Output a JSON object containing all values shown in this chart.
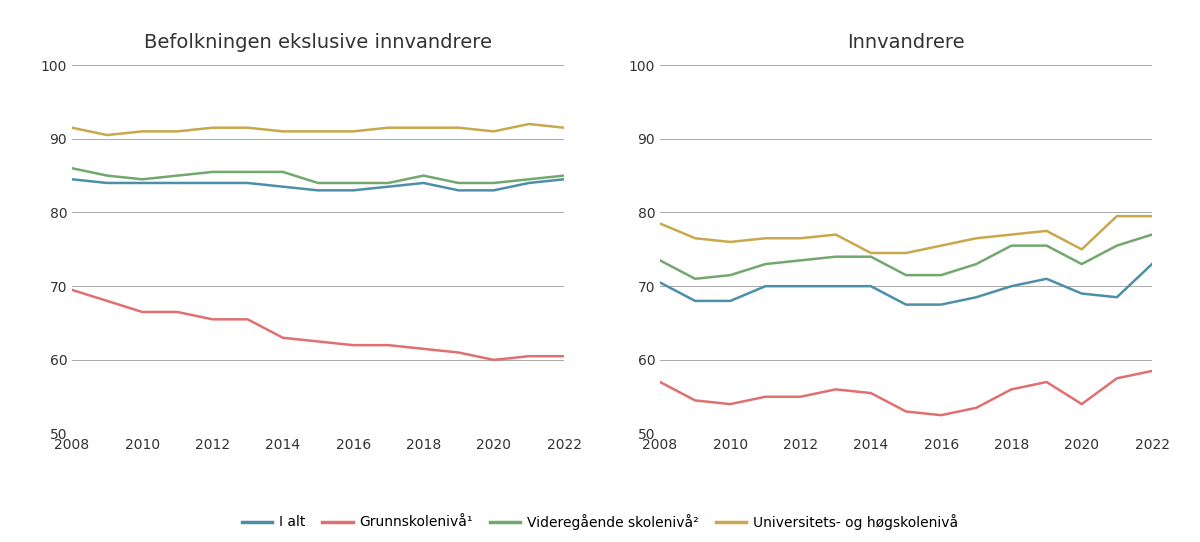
{
  "years": [
    2008,
    2009,
    2010,
    2011,
    2012,
    2013,
    2014,
    2015,
    2016,
    2017,
    2018,
    2019,
    2020,
    2021,
    2022
  ],
  "panel1_title": "Befolkningen ekslusive innvandrere",
  "panel2_title": "Innvandrere",
  "panel1": {
    "i_alt": [
      84.5,
      84.0,
      84.0,
      84.0,
      84.0,
      84.0,
      83.5,
      83.0,
      83.0,
      83.5,
      84.0,
      83.0,
      83.0,
      84.0,
      84.5
    ],
    "grunnskole": [
      69.5,
      68.0,
      66.5,
      66.5,
      65.5,
      65.5,
      63.0,
      62.5,
      62.0,
      62.0,
      61.5,
      61.0,
      60.0,
      60.5,
      60.5
    ],
    "videregaende": [
      86.0,
      85.0,
      84.5,
      85.0,
      85.5,
      85.5,
      85.5,
      84.0,
      84.0,
      84.0,
      85.0,
      84.0,
      84.0,
      84.5,
      85.0
    ],
    "universitet": [
      91.5,
      90.5,
      91.0,
      91.0,
      91.5,
      91.5,
      91.0,
      91.0,
      91.0,
      91.5,
      91.5,
      91.5,
      91.0,
      92.0,
      91.5
    ]
  },
  "panel2": {
    "i_alt": [
      70.5,
      68.0,
      68.0,
      70.0,
      70.0,
      70.0,
      70.0,
      67.5,
      67.5,
      68.5,
      70.0,
      71.0,
      69.0,
      68.5,
      73.0
    ],
    "grunnskole": [
      57.0,
      54.5,
      54.0,
      55.0,
      55.0,
      56.0,
      55.5,
      53.0,
      52.5,
      53.5,
      56.0,
      57.0,
      54.0,
      57.5,
      58.5
    ],
    "videregaende": [
      73.5,
      71.0,
      71.5,
      73.0,
      73.5,
      74.0,
      74.0,
      71.5,
      71.5,
      73.0,
      75.5,
      75.5,
      73.0,
      75.5,
      77.0
    ],
    "universitet": [
      78.5,
      76.5,
      76.0,
      76.5,
      76.5,
      77.0,
      74.5,
      74.5,
      75.5,
      76.5,
      77.0,
      77.5,
      75.0,
      79.5,
      79.5
    ]
  },
  "colors": {
    "i_alt": "#4d8fa8",
    "grunnskole": "#e07070",
    "videregaende": "#72a86e",
    "universitet": "#c9a84c"
  },
  "ylim": [
    50,
    100
  ],
  "yticks": [
    50,
    60,
    70,
    80,
    90,
    100
  ],
  "xticks": [
    2008,
    2010,
    2012,
    2014,
    2016,
    2018,
    2020,
    2022
  ],
  "legend_labels": [
    "I alt",
    "Grunnskolenivå¹",
    "Videregående skolenivå²",
    "Universitets- og høgskolenivå"
  ],
  "line_width": 1.8,
  "background_color": "#ffffff",
  "grid_color": "#aaaaaa",
  "font_color": "#333333",
  "title_fontsize": 14,
  "tick_fontsize": 10,
  "legend_fontsize": 10
}
